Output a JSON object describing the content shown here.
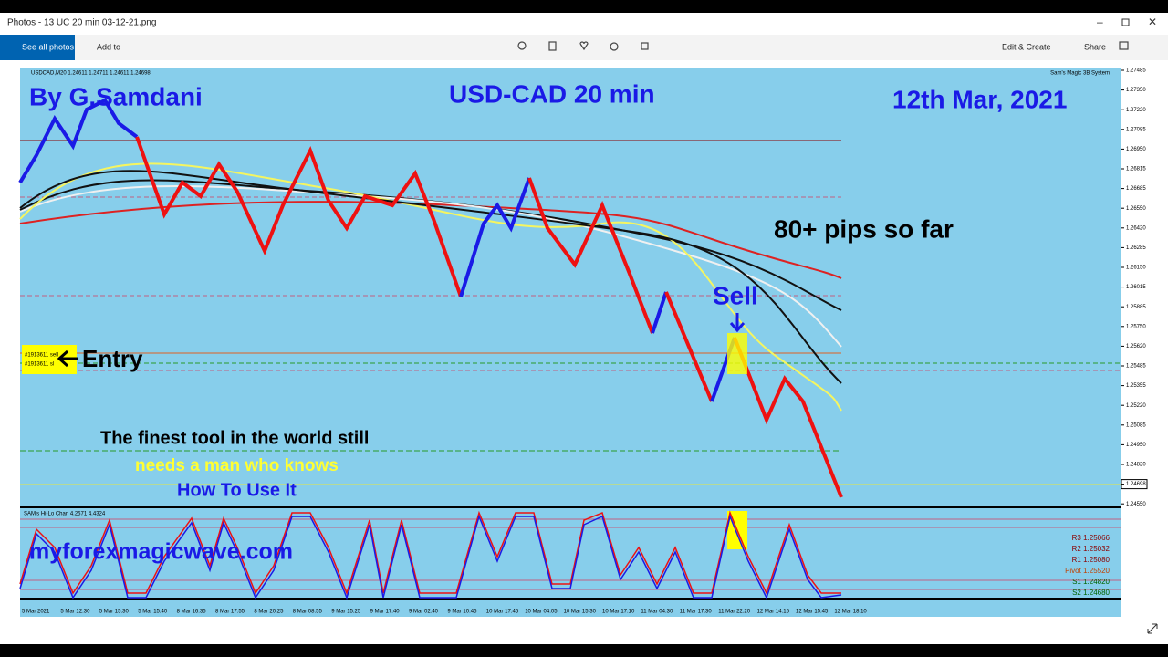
{
  "window": {
    "title": "Photos - 13 UC 20 min 03-12-21.png"
  },
  "toolbar": {
    "see_all": "See all photos",
    "add_to": "Add to",
    "edit_create": "Edit & Create",
    "share": "Share"
  },
  "chart": {
    "header": "USDCAD,M20  1.24611 1.24711 1.24611 1.24698",
    "system": "Sam's Magic 3B System",
    "price_axis": [
      "1.27485",
      "1.27350",
      "1.27220",
      "1.27085",
      "1.26950",
      "1.26815",
      "1.26685",
      "1.26550",
      "1.26420",
      "1.26285",
      "1.26150",
      "1.26015",
      "1.25885",
      "1.25750",
      "1.25620",
      "1.25485",
      "1.25355",
      "1.25220",
      "1.25085",
      "1.24950",
      "1.24820",
      "1.24698",
      "1.24550"
    ],
    "time_axis": [
      "5 Mar 2021",
      "5 Mar 12:30",
      "5 Mar 15:30",
      "5 Mar 15:40",
      "8 Mar 16:35",
      "8 Mar 17:55",
      "8 Mar 20:25",
      "8 Mar 08:55",
      "9 Mar 15:25",
      "9 Mar 17:40",
      "9 Mar 02:40",
      "9 Mar 10:45",
      "10 Mar 17:45",
      "10 Mar 04:05",
      "10 Mar 15:30",
      "10 Mar 17:10",
      "11 Mar 04:30",
      "11 Mar 17:30",
      "11 Mar 22:20",
      "12 Mar 14:15",
      "12 Mar 15:45",
      "12 Mar 18:10"
    ],
    "entry_tags": [
      "#1913611 sell",
      "#1913611 sl"
    ]
  },
  "annotations": {
    "author": "By G.Samdani",
    "pair": "USD-CAD 20 min",
    "date": "12th Mar, 2021",
    "pips": "80+ pips so far",
    "sell": "Sell",
    "entry": "Entry",
    "line1": "The finest tool in the world still",
    "line2": "needs a man who knows",
    "line3": "How To Use It",
    "site": "myforexmagicwave.com"
  },
  "indicator": {
    "header": "SAM's Hi-Lo Chan 4.2571 4.4324",
    "levels": [
      "R3 1.25066",
      "R2 1.25032",
      "R1 1.25080",
      "Pivot 1.25520",
      "S1 1.24820",
      "S2 1.24680"
    ]
  }
}
